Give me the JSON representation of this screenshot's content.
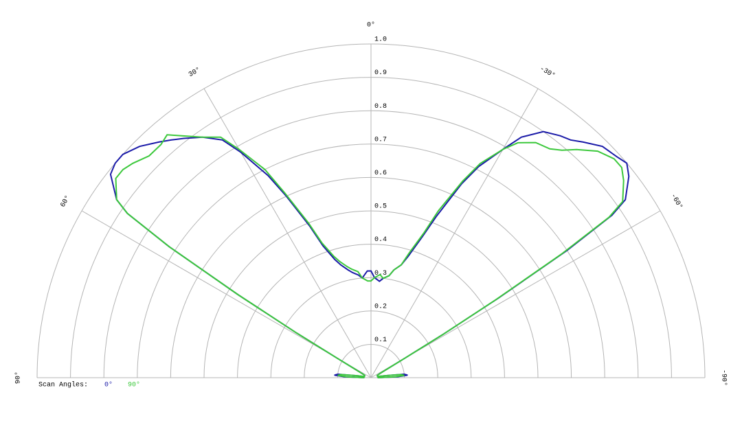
{
  "chart_data": {
    "type": "polar",
    "rlim": [
      0,
      1
    ],
    "rticks": [
      0.1,
      0.2,
      0.3,
      0.4,
      0.5,
      0.6,
      0.7,
      0.8,
      0.9,
      {
        "value": 1,
        "label": "1.0"
      }
    ],
    "angle_ticks": [
      {
        "value": 0,
        "label": "0°"
      },
      {
        "value": 30,
        "label": "30°"
      },
      {
        "value": 60,
        "label": "60°"
      },
      {
        "value": 90,
        "label": "90°"
      },
      {
        "value": -30,
        "label": "-30°"
      },
      {
        "value": -60,
        "label": "-60°"
      },
      {
        "value": -90,
        "label": "-90°"
      }
    ],
    "legend_title": "Scan Angles:",
    "x": [
      -90,
      -88,
      -86,
      -84,
      -82,
      -80,
      -75,
      -70,
      -65,
      -62,
      -60,
      -59,
      -58,
      -57,
      -56,
      -55,
      -52,
      -50,
      -48,
      -45,
      -42,
      -40,
      -38,
      -35,
      -32,
      -30,
      -27,
      -25,
      -22,
      -20,
      -17,
      -15,
      -12,
      -10,
      -7,
      -5,
      -2,
      0,
      2,
      5,
      7,
      10,
      12,
      15,
      17,
      20,
      22,
      25,
      27,
      30,
      32,
      35,
      38,
      40,
      42,
      45,
      48,
      50,
      52,
      55,
      56,
      57,
      58,
      59,
      60,
      62,
      65,
      70,
      75,
      80,
      82,
      84,
      86,
      88,
      90
    ],
    "series": [
      {
        "name": "0°",
        "color": "#1a1aa8",
        "values": [
          0.02,
          0.08,
          0.11,
          0.1,
          0.04,
          0.02,
          0.02,
          0.02,
          0.03,
          0.05,
          0.12,
          0.25,
          0.45,
          0.7,
          0.87,
          0.93,
          0.98,
          1.0,
          0.99,
          0.98,
          0.95,
          0.93,
          0.92,
          0.9,
          0.85,
          0.79,
          0.71,
          0.64,
          0.52,
          0.45,
          0.38,
          0.35,
          0.33,
          0.31,
          0.3,
          0.29,
          0.3,
          0.32,
          0.32,
          0.3,
          0.31,
          0.32,
          0.33,
          0.35,
          0.37,
          0.42,
          0.49,
          0.6,
          0.68,
          0.78,
          0.84,
          0.88,
          0.91,
          0.93,
          0.95,
          0.98,
          1.0,
          1.0,
          0.99,
          0.93,
          0.88,
          0.72,
          0.47,
          0.26,
          0.12,
          0.05,
          0.03,
          0.02,
          0.02,
          0.02,
          0.04,
          0.1,
          0.11,
          0.08,
          0.02
        ]
      },
      {
        "name": "90°",
        "color": "#3cc83c",
        "values": [
          0.02,
          0.07,
          0.1,
          0.09,
          0.04,
          0.02,
          0.02,
          0.02,
          0.03,
          0.05,
          0.12,
          0.25,
          0.44,
          0.68,
          0.86,
          0.92,
          0.96,
          0.98,
          0.98,
          0.96,
          0.92,
          0.89,
          0.87,
          0.86,
          0.83,
          0.79,
          0.72,
          0.65,
          0.54,
          0.46,
          0.39,
          0.35,
          0.33,
          0.31,
          0.3,
          0.31,
          0.3,
          0.29,
          0.29,
          0.3,
          0.32,
          0.33,
          0.34,
          0.36,
          0.38,
          0.43,
          0.5,
          0.61,
          0.7,
          0.79,
          0.85,
          0.88,
          0.92,
          0.95,
          0.94,
          0.94,
          0.96,
          0.97,
          0.97,
          0.93,
          0.88,
          0.72,
          0.47,
          0.26,
          0.12,
          0.05,
          0.03,
          0.02,
          0.02,
          0.02,
          0.04,
          0.09,
          0.1,
          0.07,
          0.02
        ]
      }
    ]
  }
}
